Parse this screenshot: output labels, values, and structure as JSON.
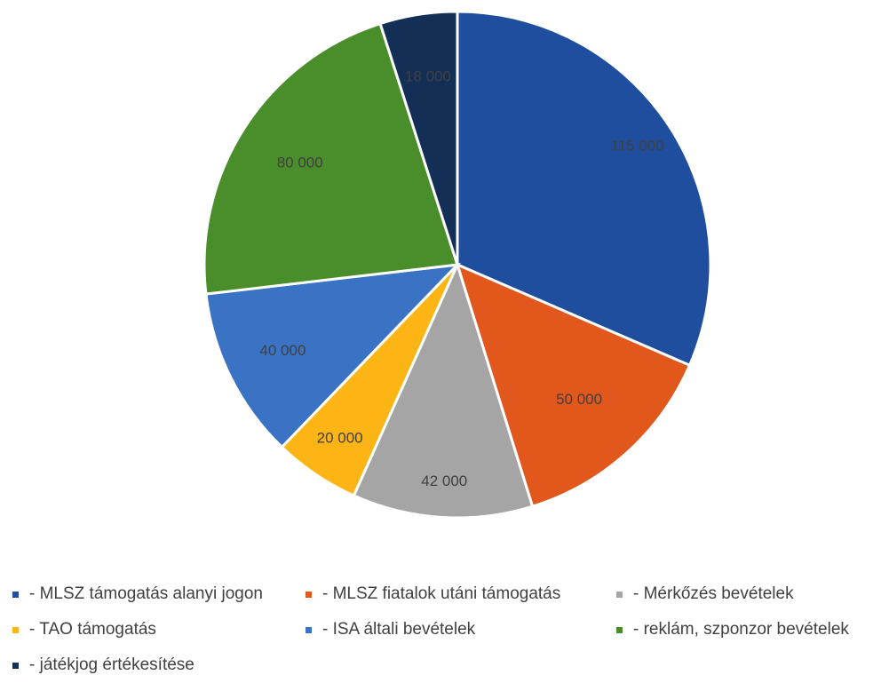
{
  "chart_data": {
    "type": "pie",
    "title": "",
    "categories": [
      "- MLSZ támogatás alanyi jogon",
      "- MLSZ fiatalok utáni támogatás",
      "- Mérkőzés bevételek",
      "- TAO támogatás",
      "- ISA általi bevételek",
      "- reklám, szponzor bevételek",
      "- játékjog értékesítése"
    ],
    "values": [
      115000,
      50000,
      42000,
      20000,
      40000,
      80000,
      18000
    ],
    "data_labels": [
      "115 000",
      "50 000",
      "42 000",
      "20 000",
      "40 000",
      "80 000",
      "18 000"
    ],
    "colors": [
      "#1F4E9E",
      "#E2571C",
      "#A5A5A5",
      "#FDB515",
      "#3A72C4",
      "#4A8D2B",
      "#142F56"
    ],
    "start_angle_deg": 0,
    "direction": "clockwise",
    "legend_position": "bottom"
  }
}
